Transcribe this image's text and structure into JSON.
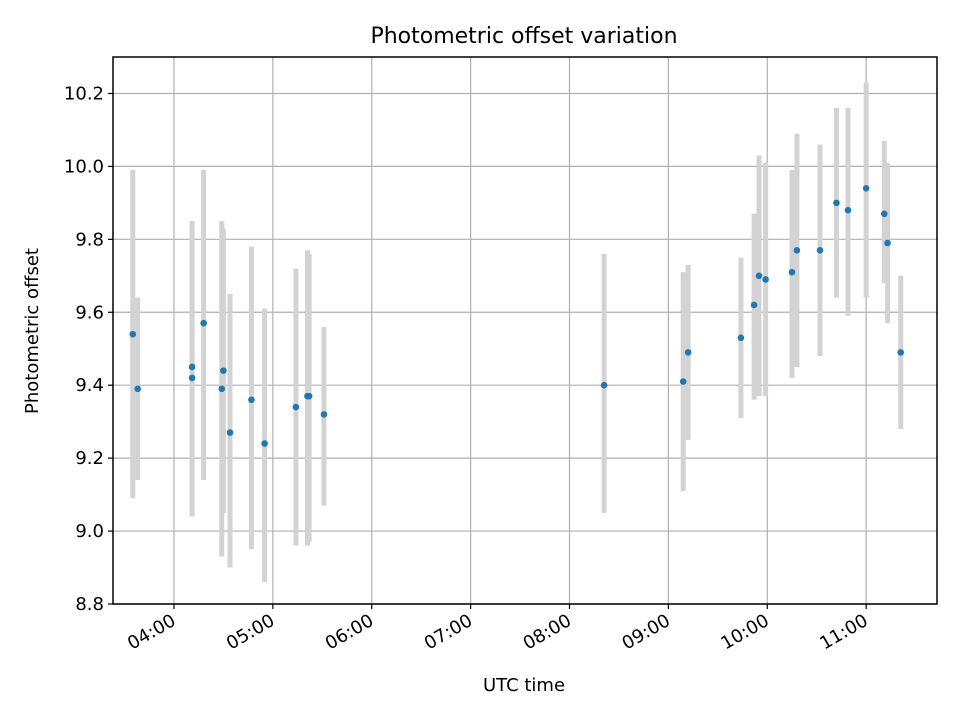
{
  "chart_data": {
    "type": "scatter",
    "title": "Photometric offset variation",
    "xlabel": "UTC time",
    "ylabel": "Photometric offset",
    "xlim": [
      "03:23",
      "11:43"
    ],
    "ylim": [
      8.8,
      10.3
    ],
    "x_ticks": [
      "04:00",
      "05:00",
      "06:00",
      "07:00",
      "08:00",
      "09:00",
      "10:00",
      "11:00"
    ],
    "y_ticks": [
      "8.8",
      "9.0",
      "9.2",
      "9.4",
      "9.6",
      "9.8",
      "10.0",
      "10.2"
    ],
    "grid": true,
    "legend": "none",
    "marker_color": "#1f77b4",
    "errorbar_color": "#d3d3d3",
    "series": [
      {
        "points": [
          {
            "x": "03:35",
            "y": 9.54,
            "ylow": 9.09,
            "yhigh": 9.99
          },
          {
            "x": "03:38",
            "y": 9.39,
            "ylow": 9.14,
            "yhigh": 9.64
          },
          {
            "x": "04:11",
            "y": 9.42,
            "ylow": 9.04,
            "yhigh": 9.85
          },
          {
            "x": "04:11",
            "y": 9.45,
            "ylow": 9.04,
            "yhigh": 9.85
          },
          {
            "x": "04:18",
            "y": 9.57,
            "ylow": 9.14,
            "yhigh": 9.99
          },
          {
            "x": "04:29",
            "y": 9.39,
            "ylow": 8.93,
            "yhigh": 9.85
          },
          {
            "x": "04:30",
            "y": 9.44,
            "ylow": 9.05,
            "yhigh": 9.83
          },
          {
            "x": "04:34",
            "y": 9.27,
            "ylow": 8.9,
            "yhigh": 9.65
          },
          {
            "x": "04:47",
            "y": 9.36,
            "ylow": 8.95,
            "yhigh": 9.78
          },
          {
            "x": "04:55",
            "y": 9.24,
            "ylow": 8.86,
            "yhigh": 9.61
          },
          {
            "x": "05:14",
            "y": 9.34,
            "ylow": 8.96,
            "yhigh": 9.72
          },
          {
            "x": "05:21",
            "y": 9.37,
            "ylow": 8.96,
            "yhigh": 9.77
          },
          {
            "x": "05:22",
            "y": 9.37,
            "ylow": 8.97,
            "yhigh": 9.76
          },
          {
            "x": "05:31",
            "y": 9.32,
            "ylow": 9.07,
            "yhigh": 9.56
          },
          {
            "x": "08:21",
            "y": 9.4,
            "ylow": 9.05,
            "yhigh": 9.76
          },
          {
            "x": "09:09",
            "y": 9.41,
            "ylow": 9.11,
            "yhigh": 9.71
          },
          {
            "x": "09:12",
            "y": 9.49,
            "ylow": 9.25,
            "yhigh": 9.73
          },
          {
            "x": "09:44",
            "y": 9.53,
            "ylow": 9.31,
            "yhigh": 9.75
          },
          {
            "x": "09:52",
            "y": 9.62,
            "ylow": 9.36,
            "yhigh": 9.87
          },
          {
            "x": "09:55",
            "y": 9.7,
            "ylow": 9.37,
            "yhigh": 10.03
          },
          {
            "x": "09:59",
            "y": 9.69,
            "ylow": 9.37,
            "yhigh": 10.01
          },
          {
            "x": "10:15",
            "y": 9.71,
            "ylow": 9.42,
            "yhigh": 9.99
          },
          {
            "x": "10:18",
            "y": 9.77,
            "ylow": 9.45,
            "yhigh": 10.09
          },
          {
            "x": "10:32",
            "y": 9.77,
            "ylow": 9.48,
            "yhigh": 10.06
          },
          {
            "x": "10:42",
            "y": 9.9,
            "ylow": 9.64,
            "yhigh": 10.16
          },
          {
            "x": "10:49",
            "y": 9.88,
            "ylow": 9.59,
            "yhigh": 10.16
          },
          {
            "x": "11:00",
            "y": 9.94,
            "ylow": 9.64,
            "yhigh": 10.23
          },
          {
            "x": "11:11",
            "y": 9.87,
            "ylow": 9.68,
            "yhigh": 10.07
          },
          {
            "x": "11:13",
            "y": 9.79,
            "ylow": 9.57,
            "yhigh": 10.01
          },
          {
            "x": "11:21",
            "y": 9.49,
            "ylow": 9.28,
            "yhigh": 9.7
          }
        ]
      }
    ]
  }
}
